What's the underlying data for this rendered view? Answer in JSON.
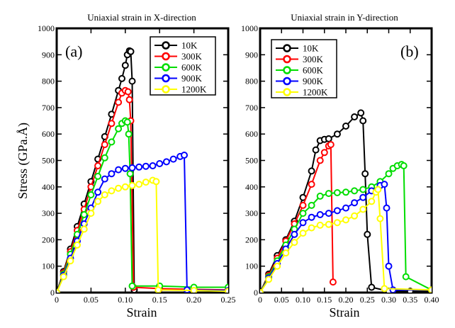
{
  "chart_data": [
    {
      "type": "line",
      "panel_label": "(a)",
      "title": "Uniaxial strain in X-direction",
      "xlabel": "Strain",
      "ylabel": "Stress (GPa.Å)",
      "xlim": [
        0,
        0.25
      ],
      "ylim": [
        0,
        1000
      ],
      "xticks": [
        "0",
        "0.05",
        "0.10",
        "0.15",
        "0.20",
        "0.25"
      ],
      "yticks": [
        "0",
        "100",
        "200",
        "300",
        "400",
        "500",
        "600",
        "700",
        "800",
        "900",
        "1000"
      ],
      "legend_position": "top-right",
      "series": [
        {
          "name": "10K",
          "color": "#000000",
          "x": [
            0,
            0.01,
            0.02,
            0.03,
            0.04,
            0.05,
            0.06,
            0.07,
            0.08,
            0.09,
            0.095,
            0.1,
            0.103,
            0.106,
            0.108,
            0.11,
            0.113
          ],
          "y": [
            0,
            80,
            165,
            250,
            335,
            420,
            505,
            590,
            675,
            765,
            810,
            860,
            900,
            915,
            912,
            800,
            10
          ]
        },
        {
          "name": "300K",
          "color": "#ff0000",
          "x": [
            0,
            0.01,
            0.02,
            0.03,
            0.04,
            0.05,
            0.06,
            0.07,
            0.08,
            0.09,
            0.095,
            0.1,
            0.104,
            0.106,
            0.108,
            0.112,
            0.15,
            0.2,
            0.25
          ],
          "y": [
            0,
            75,
            155,
            235,
            315,
            400,
            480,
            560,
            640,
            720,
            755,
            765,
            760,
            730,
            650,
            20,
            15,
            12,
            10
          ]
        },
        {
          "name": "600K",
          "color": "#00dd00",
          "x": [
            0,
            0.01,
            0.02,
            0.03,
            0.04,
            0.05,
            0.06,
            0.07,
            0.08,
            0.09,
            0.095,
            0.1,
            0.103,
            0.105,
            0.107,
            0.11,
            0.15,
            0.2,
            0.25
          ],
          "y": [
            0,
            70,
            145,
            220,
            295,
            370,
            440,
            510,
            570,
            620,
            640,
            650,
            645,
            600,
            450,
            25,
            25,
            20,
            20
          ]
        },
        {
          "name": "900K",
          "color": "#0000ff",
          "x": [
            0,
            0.01,
            0.02,
            0.03,
            0.04,
            0.05,
            0.06,
            0.07,
            0.08,
            0.09,
            0.1,
            0.11,
            0.12,
            0.13,
            0.14,
            0.15,
            0.16,
            0.17,
            0.18,
            0.186,
            0.19,
            0.25
          ],
          "y": [
            0,
            65,
            130,
            195,
            260,
            320,
            380,
            430,
            450,
            465,
            470,
            472,
            475,
            478,
            480,
            488,
            495,
            505,
            515,
            520,
            10,
            8
          ]
        },
        {
          "name": "1200K",
          "color": "#ffff00",
          "x": [
            0,
            0.01,
            0.02,
            0.03,
            0.04,
            0.05,
            0.06,
            0.07,
            0.08,
            0.09,
            0.1,
            0.11,
            0.12,
            0.13,
            0.14,
            0.145,
            0.148,
            0.2,
            0.25
          ],
          "y": [
            0,
            60,
            120,
            180,
            240,
            300,
            345,
            370,
            385,
            395,
            400,
            405,
            410,
            418,
            425,
            420,
            10,
            8,
            5
          ]
        }
      ]
    },
    {
      "type": "line",
      "panel_label": "(b)",
      "title": "Uniaxial strain in Y-direction",
      "xlabel": "Strain",
      "ylabel": "",
      "xlim": [
        0,
        0.4
      ],
      "ylim": [
        0,
        1000
      ],
      "xticks": [
        "0",
        "0.05",
        "0.10",
        "0.15",
        "0.20",
        "0.25",
        "0.30",
        "0.35",
        "0.40"
      ],
      "yticks": [
        "0",
        "100",
        "200",
        "300",
        "400",
        "500",
        "600",
        "700",
        "800",
        "900",
        "1000"
      ],
      "legend_position": "top-left",
      "series": [
        {
          "name": "10K",
          "color": "#000000",
          "x": [
            0,
            0.02,
            0.04,
            0.06,
            0.08,
            0.1,
            0.12,
            0.13,
            0.14,
            0.15,
            0.16,
            0.18,
            0.2,
            0.22,
            0.235,
            0.24,
            0.245,
            0.25,
            0.26,
            0.3,
            0.35,
            0.4
          ],
          "y": [
            0,
            70,
            140,
            200,
            270,
            360,
            460,
            540,
            575,
            580,
            582,
            600,
            630,
            665,
            680,
            650,
            450,
            220,
            20,
            5,
            5,
            5
          ]
        },
        {
          "name": "300K",
          "color": "#ff0000",
          "x": [
            0,
            0.02,
            0.04,
            0.06,
            0.08,
            0.1,
            0.12,
            0.14,
            0.15,
            0.16,
            0.165,
            0.17
          ],
          "y": [
            0,
            65,
            130,
            195,
            260,
            330,
            410,
            500,
            530,
            555,
            560,
            40
          ]
        },
        {
          "name": "600K",
          "color": "#00dd00",
          "x": [
            0,
            0.02,
            0.04,
            0.06,
            0.08,
            0.1,
            0.12,
            0.14,
            0.16,
            0.18,
            0.2,
            0.22,
            0.24,
            0.26,
            0.28,
            0.3,
            0.31,
            0.32,
            0.33,
            0.335,
            0.34,
            0.4
          ],
          "y": [
            0,
            60,
            120,
            180,
            240,
            300,
            330,
            365,
            375,
            378,
            380,
            385,
            390,
            400,
            420,
            450,
            470,
            480,
            485,
            480,
            60,
            10
          ]
        },
        {
          "name": "900K",
          "color": "#0000ff",
          "x": [
            0,
            0.02,
            0.04,
            0.06,
            0.08,
            0.1,
            0.12,
            0.14,
            0.16,
            0.18,
            0.2,
            0.22,
            0.24,
            0.26,
            0.28,
            0.29,
            0.295,
            0.3,
            0.31,
            0.4
          ],
          "y": [
            0,
            55,
            110,
            165,
            220,
            265,
            285,
            295,
            300,
            310,
            320,
            340,
            360,
            385,
            405,
            410,
            320,
            100,
            10,
            10
          ]
        },
        {
          "name": "1200K",
          "color": "#ffff00",
          "x": [
            0,
            0.02,
            0.04,
            0.06,
            0.08,
            0.1,
            0.12,
            0.14,
            0.16,
            0.18,
            0.2,
            0.22,
            0.24,
            0.26,
            0.27,
            0.275,
            0.28,
            0.29,
            0.4
          ],
          "y": [
            0,
            50,
            100,
            150,
            190,
            225,
            245,
            255,
            258,
            265,
            275,
            290,
            315,
            345,
            380,
            390,
            280,
            15,
            10
          ]
        }
      ]
    }
  ]
}
